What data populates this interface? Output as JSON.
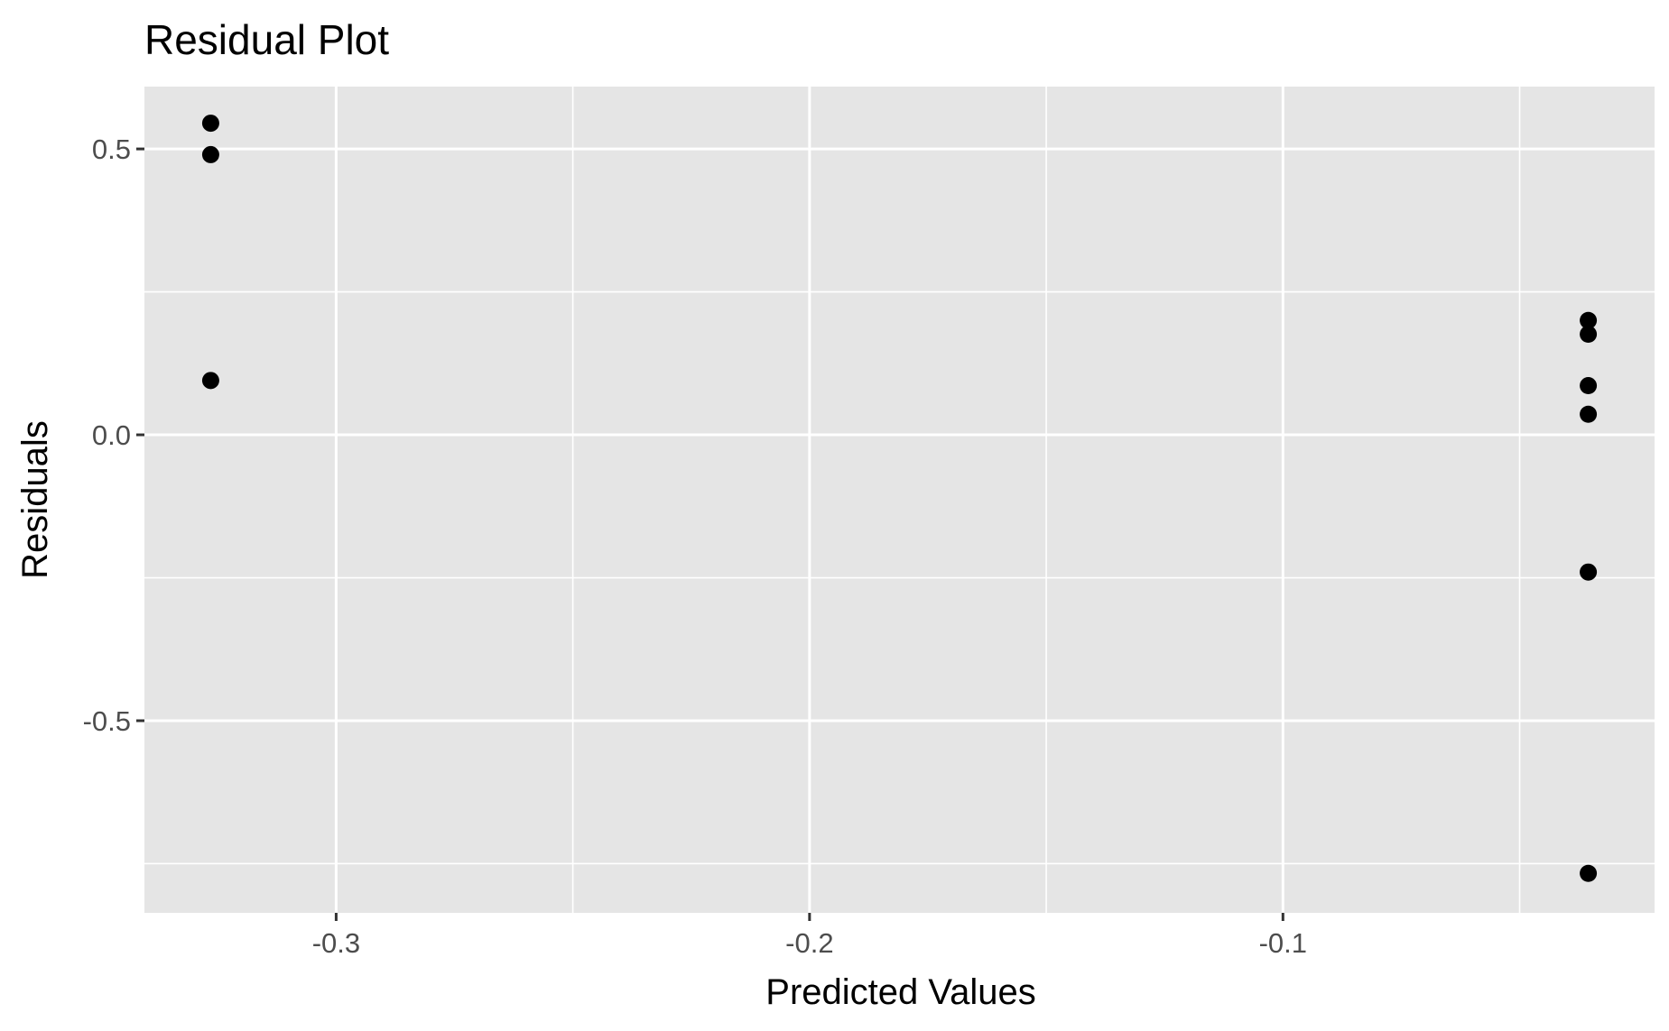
{
  "chart_data": {
    "type": "scatter",
    "title": "Residual Plot",
    "xlabel": "Predicted Values",
    "ylabel": "Residuals",
    "xlim": [
      -0.3405,
      -0.0215
    ],
    "ylim": [
      -0.836,
      0.609
    ],
    "x_ticks": [
      {
        "value": -0.3,
        "label": "-0.3"
      },
      {
        "value": -0.2,
        "label": "-0.2"
      },
      {
        "value": -0.1,
        "label": "-0.1"
      }
    ],
    "y_ticks": [
      {
        "value": 0.5,
        "label": "0.5"
      },
      {
        "value": 0.0,
        "label": "0.0"
      },
      {
        "value": -0.5,
        "label": "-0.5"
      }
    ],
    "x_minor_grid": [
      -0.25,
      -0.15,
      -0.05
    ],
    "y_minor_grid": [
      0.25,
      -0.25,
      -0.75
    ],
    "grid": true,
    "colors": {
      "panel_background": "#e5e5e5",
      "grid_line": "#ffffff",
      "point": "#000000",
      "tick_text": "#4d4d4d",
      "tick_mark": "#333333"
    },
    "points": [
      {
        "x": -0.3265,
        "y": 0.545
      },
      {
        "x": -0.3265,
        "y": 0.49
      },
      {
        "x": -0.3265,
        "y": 0.095
      },
      {
        "x": -0.0355,
        "y": 0.2
      },
      {
        "x": -0.0355,
        "y": 0.176
      },
      {
        "x": -0.0355,
        "y": 0.086
      },
      {
        "x": -0.0355,
        "y": 0.036
      },
      {
        "x": -0.0355,
        "y": -0.24
      },
      {
        "x": -0.0355,
        "y": -0.767
      }
    ]
  }
}
